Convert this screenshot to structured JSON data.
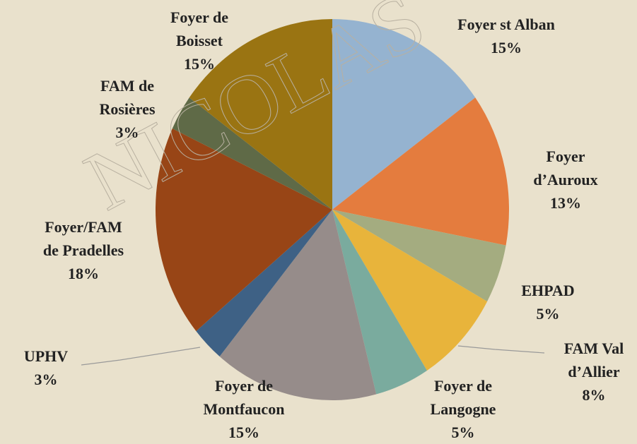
{
  "chart_data": {
    "type": "pie",
    "watermark": "NICOLAS",
    "categories": [
      "Foyer st Alban",
      "Foyer d’Auroux",
      "EHPAD",
      "FAM Val d’Allier",
      "Foyer de Langogne",
      "Foyer de Montfaucon",
      "UPHV",
      "Foyer/FAM de Pradelles",
      "FAM de Rosières",
      "Foyer de Boisset"
    ],
    "values": [
      15,
      13,
      5,
      8,
      5,
      15,
      3,
      18,
      3,
      15
    ],
    "value_labels": [
      "15%",
      "13%",
      "5%",
      "8%",
      "5%",
      "15%",
      "3%",
      "18%",
      "3%",
      "15%"
    ],
    "colors": [
      "#95b3d0",
      "#e47c3e",
      "#a4ac80",
      "#e8b43b",
      "#7aab9e",
      "#968c8a",
      "#3e6185",
      "#984516",
      "#5f6a47",
      "#9a7412"
    ]
  }
}
